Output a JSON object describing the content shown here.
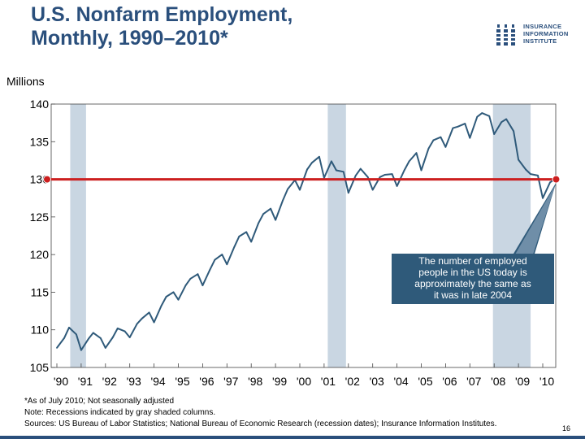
{
  "header": {
    "title_line1": "U.S. Nonfarm Employment,",
    "title_line2": "Monthly, 1990–2010*"
  },
  "logo": {
    "line1": "INSURANCE",
    "line2": "INFORMATION",
    "line3": "INSTITUTE",
    "icon": "iii-logo-icon"
  },
  "colors": {
    "title": "#2a4f7c",
    "series": "#2f5a7a",
    "reference": "#cc1f1f",
    "recession": "#c9d6e2",
    "callout_bg": "#2f5a7a"
  },
  "chart_data": {
    "type": "line",
    "title": "U.S. Nonfarm Employment, Monthly, 1990–2010*",
    "ylabel": "Millions",
    "ylim": [
      105,
      140
    ],
    "y_ticks": [
      "105",
      "110",
      "115",
      "120",
      "125",
      "130",
      "135",
      "140"
    ],
    "x_tick_labels": [
      "'90",
      "'91",
      "'92",
      "'93",
      "'94",
      "'95",
      "'96",
      "'97",
      "'98",
      "'99",
      "'00",
      "'01",
      "'02",
      "'03",
      "'04",
      "'05",
      "'06",
      "'07",
      "'08",
      "'09",
      "'10"
    ],
    "x_range": [
      1990.0,
      2010.6
    ],
    "grid": false,
    "recessions": [
      {
        "start": 1990.55,
        "end": 1991.2
      },
      {
        "start": 2001.15,
        "end": 2001.9
      },
      {
        "start": 2007.95,
        "end": 2009.5
      }
    ],
    "reference_line": {
      "value": 130,
      "start": 1990.0,
      "end": 2010.55
    },
    "callout": {
      "text": "The number of employed people in the US today is approximately the same as it was in late 2004",
      "points_to_year": 2010.55
    },
    "series": [
      {
        "name": "Nonfarm employment (millions, not seasonally adjusted)",
        "x": [
          1990.0,
          1990.3,
          1990.5,
          1990.8,
          1991.0,
          1991.3,
          1991.5,
          1991.8,
          1992.0,
          1992.3,
          1992.5,
          1992.8,
          1993.0,
          1993.3,
          1993.5,
          1993.8,
          1994.0,
          1994.3,
          1994.5,
          1994.8,
          1995.0,
          1995.3,
          1995.5,
          1995.8,
          1996.0,
          1996.3,
          1996.5,
          1996.8,
          1997.0,
          1997.3,
          1997.5,
          1997.8,
          1998.0,
          1998.3,
          1998.5,
          1998.8,
          1999.0,
          1999.3,
          1999.5,
          1999.8,
          2000.0,
          2000.3,
          2000.5,
          2000.8,
          2001.0,
          2001.3,
          2001.5,
          2001.8,
          2002.0,
          2002.3,
          2002.5,
          2002.8,
          2003.0,
          2003.3,
          2003.5,
          2003.8,
          2004.0,
          2004.3,
          2004.5,
          2004.8,
          2005.0,
          2005.3,
          2005.5,
          2005.8,
          2006.0,
          2006.3,
          2006.5,
          2006.8,
          2007.0,
          2007.3,
          2007.5,
          2007.8,
          2008.0,
          2008.3,
          2008.5,
          2008.8,
          2009.0,
          2009.3,
          2009.5,
          2009.8,
          2010.0,
          2010.3,
          2010.5
        ],
        "values": [
          107.6,
          108.9,
          110.3,
          109.4,
          107.3,
          108.8,
          109.6,
          108.9,
          107.6,
          109.0,
          110.2,
          109.8,
          109.0,
          110.8,
          111.5,
          112.3,
          111.0,
          113.2,
          114.4,
          115.0,
          114.0,
          115.9,
          116.8,
          117.4,
          115.9,
          118.0,
          119.3,
          120.0,
          118.7,
          121.0,
          122.4,
          123.0,
          121.7,
          124.2,
          125.4,
          126.1,
          124.6,
          127.2,
          128.7,
          129.9,
          128.6,
          131.3,
          132.2,
          133.0,
          130.2,
          132.4,
          131.2,
          131.0,
          128.2,
          130.5,
          131.4,
          130.3,
          128.6,
          130.3,
          130.6,
          130.7,
          129.1,
          131.2,
          132.4,
          133.5,
          131.2,
          134.1,
          135.2,
          135.6,
          134.3,
          136.8,
          137.0,
          137.4,
          135.5,
          138.3,
          138.8,
          138.4,
          136.0,
          137.6,
          138.0,
          136.4,
          132.6,
          131.3,
          130.7,
          130.5,
          127.5,
          129.6,
          130.0
        ]
      }
    ]
  },
  "footer": {
    "note1": "*As of July 2010; Not seasonally adjusted",
    "note2": "Note: Recessions indicated by gray shaded columns.",
    "note3": "Sources: US Bureau of Labor Statistics;  National Bureau of Economic Research (recession dates); Insurance Information Institutes.",
    "page_number": "16"
  }
}
